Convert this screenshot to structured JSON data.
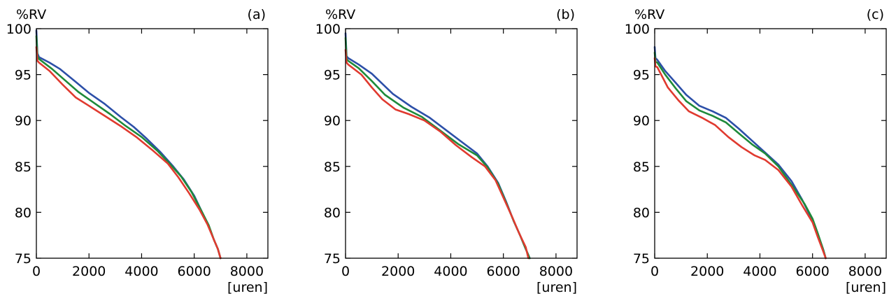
{
  "colors": {
    "blue": "#2c4fa8",
    "green": "#1e8a3a",
    "red": "#e03a2f",
    "axis": "#000000"
  },
  "chart_data": [
    {
      "type": "line",
      "panel_label": "(a)",
      "ylabel": "%RV",
      "xlabel": "[uren]",
      "xlim": [
        0,
        8800
      ],
      "ylim": [
        75,
        100
      ],
      "xticks": [
        0,
        2000,
        4000,
        6000,
        8000
      ],
      "yticks": [
        75,
        80,
        85,
        90,
        95,
        100
      ],
      "series": [
        {
          "color": "blue",
          "x": [
            0,
            40,
            100,
            500,
            900,
            1500,
            2000,
            2600,
            3200,
            3700,
            4200,
            4700,
            5200,
            5600,
            6000,
            6300,
            6550,
            6750,
            6900,
            7000
          ],
          "y": [
            99.8,
            97.3,
            96.9,
            96.3,
            95.6,
            94.2,
            93.0,
            91.8,
            90.4,
            89.3,
            88.0,
            86.6,
            85.0,
            83.6,
            81.8,
            80.0,
            78.5,
            77.0,
            76.0,
            75.0
          ]
        },
        {
          "color": "green",
          "x": [
            0,
            40,
            100,
            600,
            1000,
            1600,
            2200,
            2800,
            3400,
            4000,
            4600,
            5100,
            5500,
            5900,
            6300,
            6550,
            6750,
            6900,
            7000
          ],
          "y": [
            99.2,
            97.0,
            96.7,
            95.6,
            94.6,
            93.1,
            91.9,
            90.7,
            89.4,
            88.2,
            86.7,
            85.2,
            83.9,
            82.2,
            80.0,
            78.6,
            77.0,
            76.0,
            75.0
          ]
        },
        {
          "color": "red",
          "x": [
            0,
            40,
            100,
            500,
            1000,
            1500,
            2000,
            2600,
            3200,
            3800,
            4400,
            5000,
            5400,
            5800,
            6200,
            6500,
            6750,
            6900,
            7000
          ],
          "y": [
            98.0,
            96.5,
            96.3,
            95.4,
            93.9,
            92.5,
            91.6,
            90.5,
            89.4,
            88.2,
            86.8,
            85.3,
            83.8,
            82.1,
            80.3,
            78.7,
            77.0,
            76.0,
            75.0
          ]
        }
      ]
    },
    {
      "type": "line",
      "panel_label": "(b)",
      "ylabel": "%RV",
      "xlabel": "[uren]",
      "xlim": [
        0,
        8800
      ],
      "ylim": [
        75,
        100
      ],
      "xticks": [
        0,
        2000,
        4000,
        6000,
        8000
      ],
      "yticks": [
        75,
        80,
        85,
        90,
        95,
        100
      ],
      "series": [
        {
          "color": "blue",
          "x": [
            0,
            40,
            100,
            500,
            1000,
            1800,
            2500,
            3200,
            3800,
            4400,
            5000,
            5400,
            5800,
            6100,
            6400,
            6650,
            6850,
            7000
          ],
          "y": [
            99.5,
            97.0,
            96.8,
            96.1,
            95.1,
            92.9,
            91.5,
            90.3,
            89.0,
            87.7,
            86.4,
            85.0,
            83.2,
            81.2,
            79.0,
            77.4,
            76.0,
            75.0
          ]
        },
        {
          "color": "green",
          "x": [
            0,
            40,
            100,
            500,
            1000,
            1500,
            2200,
            2900,
            3600,
            4300,
            5000,
            5400,
            5800,
            6100,
            6400,
            6650,
            6850,
            7000
          ],
          "y": [
            99.0,
            96.7,
            96.5,
            95.7,
            94.3,
            92.8,
            91.4,
            90.4,
            88.9,
            87.4,
            86.2,
            84.9,
            83.1,
            81.1,
            79.0,
            77.4,
            76.0,
            75.0
          ]
        },
        {
          "color": "red",
          "x": [
            0,
            40,
            100,
            600,
            1000,
            1400,
            1900,
            2400,
            3000,
            3600,
            4200,
            4800,
            5300,
            5700,
            6000,
            6350,
            6600,
            6850,
            6950
          ],
          "y": [
            97.7,
            96.3,
            96.1,
            95.0,
            93.6,
            92.3,
            91.2,
            90.7,
            90.0,
            88.8,
            87.3,
            86.0,
            85.0,
            83.5,
            81.6,
            79.4,
            77.7,
            76.2,
            75.0
          ]
        }
      ]
    },
    {
      "type": "line",
      "panel_label": "(c)",
      "ylabel": "%RV",
      "xlabel": "[uren]",
      "xlim": [
        0,
        8800
      ],
      "ylim": [
        75,
        100
      ],
      "xticks": [
        0,
        2000,
        4000,
        6000,
        8000
      ],
      "yticks": [
        75,
        80,
        85,
        90,
        95,
        100
      ],
      "series": [
        {
          "color": "blue",
          "x": [
            0,
            30,
            100,
            400,
            800,
            1200,
            1700,
            2200,
            2700,
            3200,
            3700,
            4200,
            4700,
            5200,
            5600,
            5900,
            6200,
            6400,
            6500
          ],
          "y": [
            98.0,
            96.8,
            96.6,
            95.4,
            94.1,
            92.8,
            91.6,
            91.0,
            90.3,
            89.1,
            87.8,
            86.5,
            85.2,
            83.4,
            81.4,
            79.7,
            77.6,
            76.0,
            75.0
          ]
        },
        {
          "color": "green",
          "x": [
            0,
            30,
            100,
            400,
            800,
            1200,
            1700,
            2200,
            2700,
            3200,
            3700,
            4200,
            4700,
            5200,
            5700,
            6000,
            6200,
            6400,
            6500
          ],
          "y": [
            97.4,
            96.4,
            96.3,
            95.0,
            93.5,
            92.1,
            91.1,
            90.5,
            89.8,
            88.6,
            87.4,
            86.4,
            85.0,
            83.0,
            80.9,
            79.3,
            77.7,
            76.0,
            75.0
          ]
        },
        {
          "color": "red",
          "x": [
            0,
            30,
            100,
            500,
            900,
            1300,
            1800,
            2300,
            2800,
            3300,
            3800,
            4200,
            4700,
            5200,
            5600,
            6000,
            6200,
            6400,
            6500
          ],
          "y": [
            96.8,
            95.9,
            95.8,
            93.6,
            92.2,
            91.0,
            90.3,
            89.5,
            88.2,
            87.1,
            86.2,
            85.7,
            84.6,
            82.8,
            80.8,
            78.9,
            77.3,
            75.8,
            75.0
          ]
        }
      ]
    }
  ]
}
